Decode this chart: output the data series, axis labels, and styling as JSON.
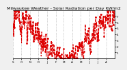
{
  "title": "Milwaukee Weather - Solar Radiation per Day KW/m2",
  "bg_color": "#f0f0f0",
  "plot_bg": "#ffffff",
  "line_color": "#dd0000",
  "line_style": "--",
  "line_width": 0.7,
  "marker": "o",
  "marker_size": 1.0,
  "grid_color": "#999999",
  "grid_style": ":",
  "ylim": [
    0,
    8
  ],
  "title_fontsize": 4.5,
  "tick_fontsize": 3.0,
  "month_labels": [
    "S",
    "O",
    "N",
    "D",
    "J",
    "F",
    "M",
    "A",
    "M",
    "J",
    "J",
    "A",
    "S"
  ],
  "month_starts": [
    0,
    30,
    61,
    91,
    122,
    153,
    181,
    212,
    242,
    273,
    303,
    334,
    365
  ],
  "ytick_labels": [
    "1",
    "2",
    "3",
    "4",
    "5",
    "6",
    "7"
  ],
  "ytick_vals": [
    1,
    2,
    3,
    4,
    5,
    6,
    7
  ]
}
